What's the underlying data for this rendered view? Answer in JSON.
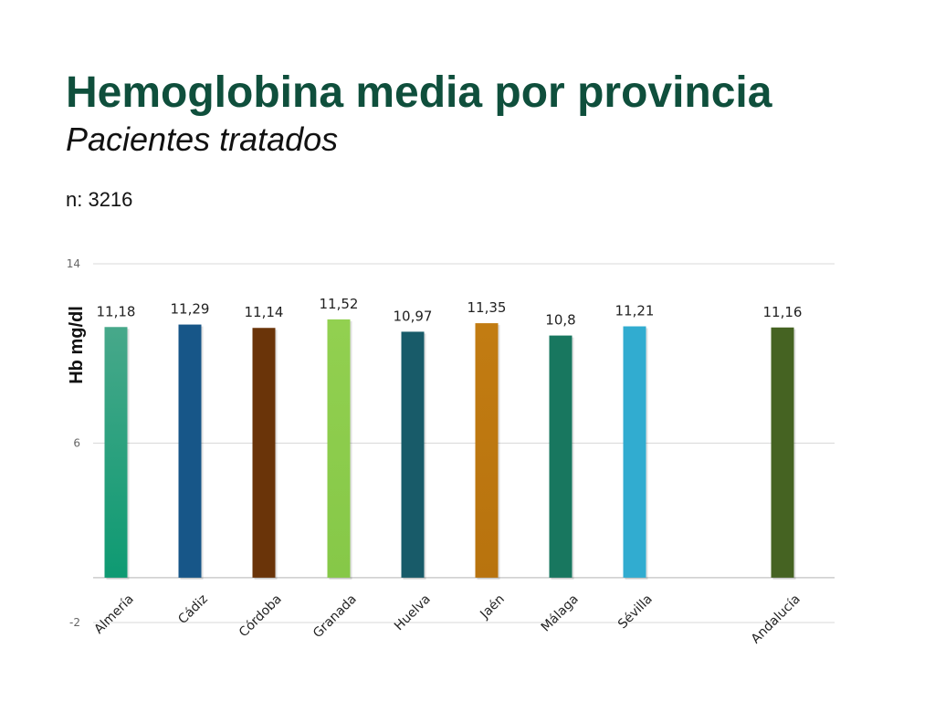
{
  "header": {
    "title": "Hemoglobina media por provincia",
    "subtitle": "Pacientes tratados",
    "n_label": "n: 3216"
  },
  "chart_data": {
    "type": "bar",
    "ylabel": "Hb  mg/dl",
    "ylim": [
      -2,
      14
    ],
    "yticks": [
      -2,
      6,
      14
    ],
    "grid": true,
    "categories": [
      "Almería",
      "Cádiz",
      "Córdoba",
      "Granada",
      "Huelva",
      "Jaén",
      "Málaga",
      "Sévilla",
      "Andalucía"
    ],
    "values": [
      11.18,
      11.29,
      11.14,
      11.52,
      10.97,
      11.35,
      10.8,
      11.21,
      11.16
    ],
    "data_labels": [
      "11,18",
      "11,29",
      "11,14",
      "11,52",
      "10,97",
      "11,35",
      "10,8",
      "11,21",
      "11,16"
    ],
    "colors": [
      [
        "#47a88a",
        "#0e9a72"
      ],
      [
        "#175688",
        "#175688"
      ],
      [
        "#6a3409",
        "#6a3409"
      ],
      [
        "#92d050",
        "#86c848"
      ],
      [
        "#185b69",
        "#185b69"
      ],
      [
        "#c27c12",
        "#b8730e"
      ],
      [
        "#18775f",
        "#18775f"
      ],
      [
        "#31acd0",
        "#31acd0"
      ],
      [
        "#456322",
        "#456322"
      ]
    ]
  }
}
